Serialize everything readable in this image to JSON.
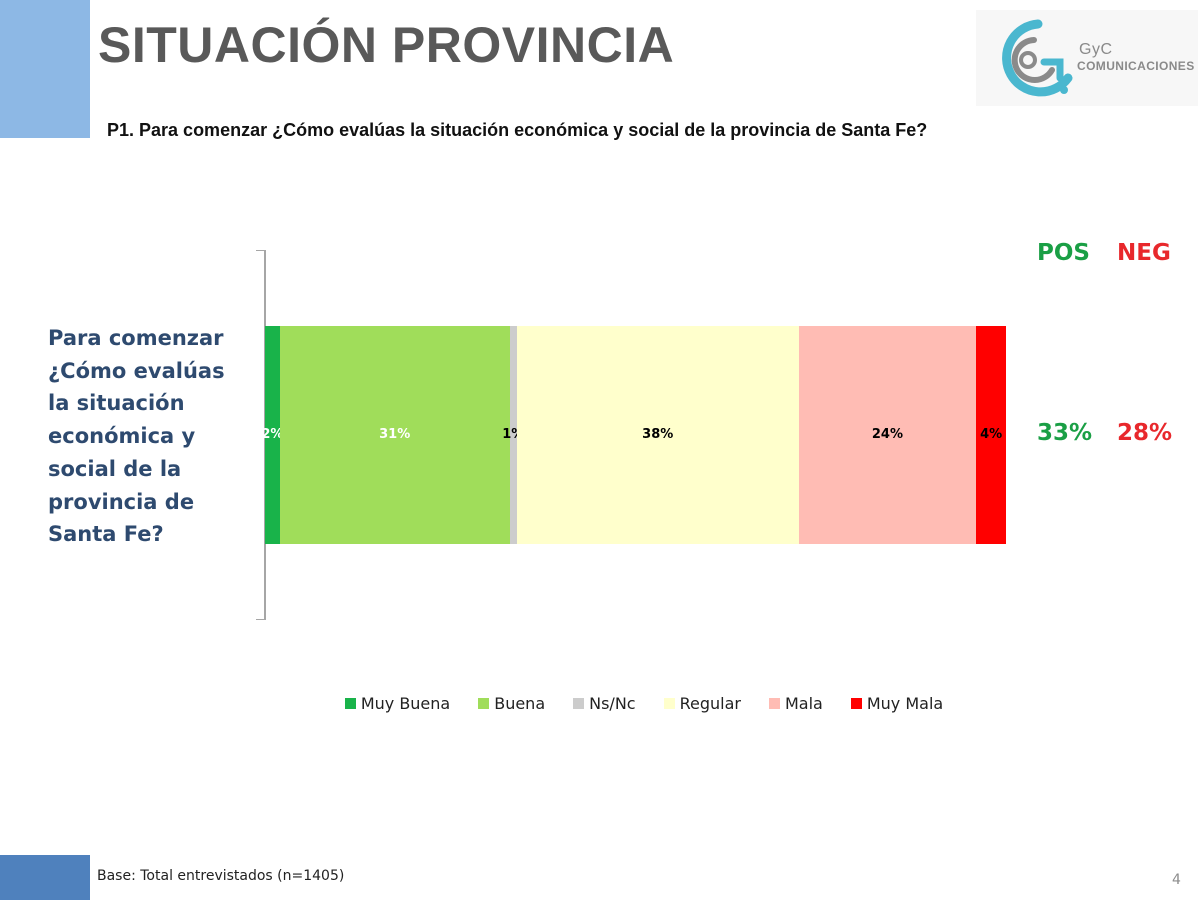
{
  "slide": {
    "title": "SITUACIÓN PROVINCIA",
    "question": "P1. Para comenzar ¿Cómo evalúas la situación económica y social de la provincia de Santa Fe?",
    "base_note": "Base: Total entrevistados (n=1405)",
    "page_number": "4"
  },
  "logo": {
    "brand": "GyC",
    "subtitle": "COMUNICACIONES"
  },
  "summary": {
    "pos_label": "POS",
    "neg_label": "NEG",
    "pos_value": "33%",
    "neg_value": "28%",
    "pos_color": "#1a9f45",
    "neg_color": "#e8282c"
  },
  "chart_data": {
    "type": "bar",
    "orientation": "horizontal",
    "stacked": true,
    "title": "",
    "categories": [
      "Para comenzar ¿Cómo evalúas la situación económica y social de la provincia de Santa Fe?"
    ],
    "xlim": [
      0,
      100
    ],
    "unit": "%",
    "series": [
      {
        "name": "Muy Buena",
        "values": [
          2
        ],
        "label": "2%",
        "color": "#19b34a",
        "label_color": "#ffffff"
      },
      {
        "name": "Buena",
        "values": [
          31
        ],
        "label": "31%",
        "color": "#a0dd5a",
        "label_color": "#ffffff"
      },
      {
        "name": "Ns/Nc",
        "values": [
          1
        ],
        "label": "1%",
        "color": "#cccccc",
        "label_color": "#000000"
      },
      {
        "name": "Regular",
        "values": [
          38
        ],
        "label": "38%",
        "color": "#ffffcc",
        "label_color": "#000000"
      },
      {
        "name": "Mala",
        "values": [
          24
        ],
        "label": "24%",
        "color": "#ffbcb4",
        "label_color": "#000000"
      },
      {
        "name": "Muy Mala",
        "values": [
          4
        ],
        "label": "4%",
        "color": "#ff0000",
        "label_color": "#000000"
      }
    ],
    "legend_position": "bottom"
  }
}
